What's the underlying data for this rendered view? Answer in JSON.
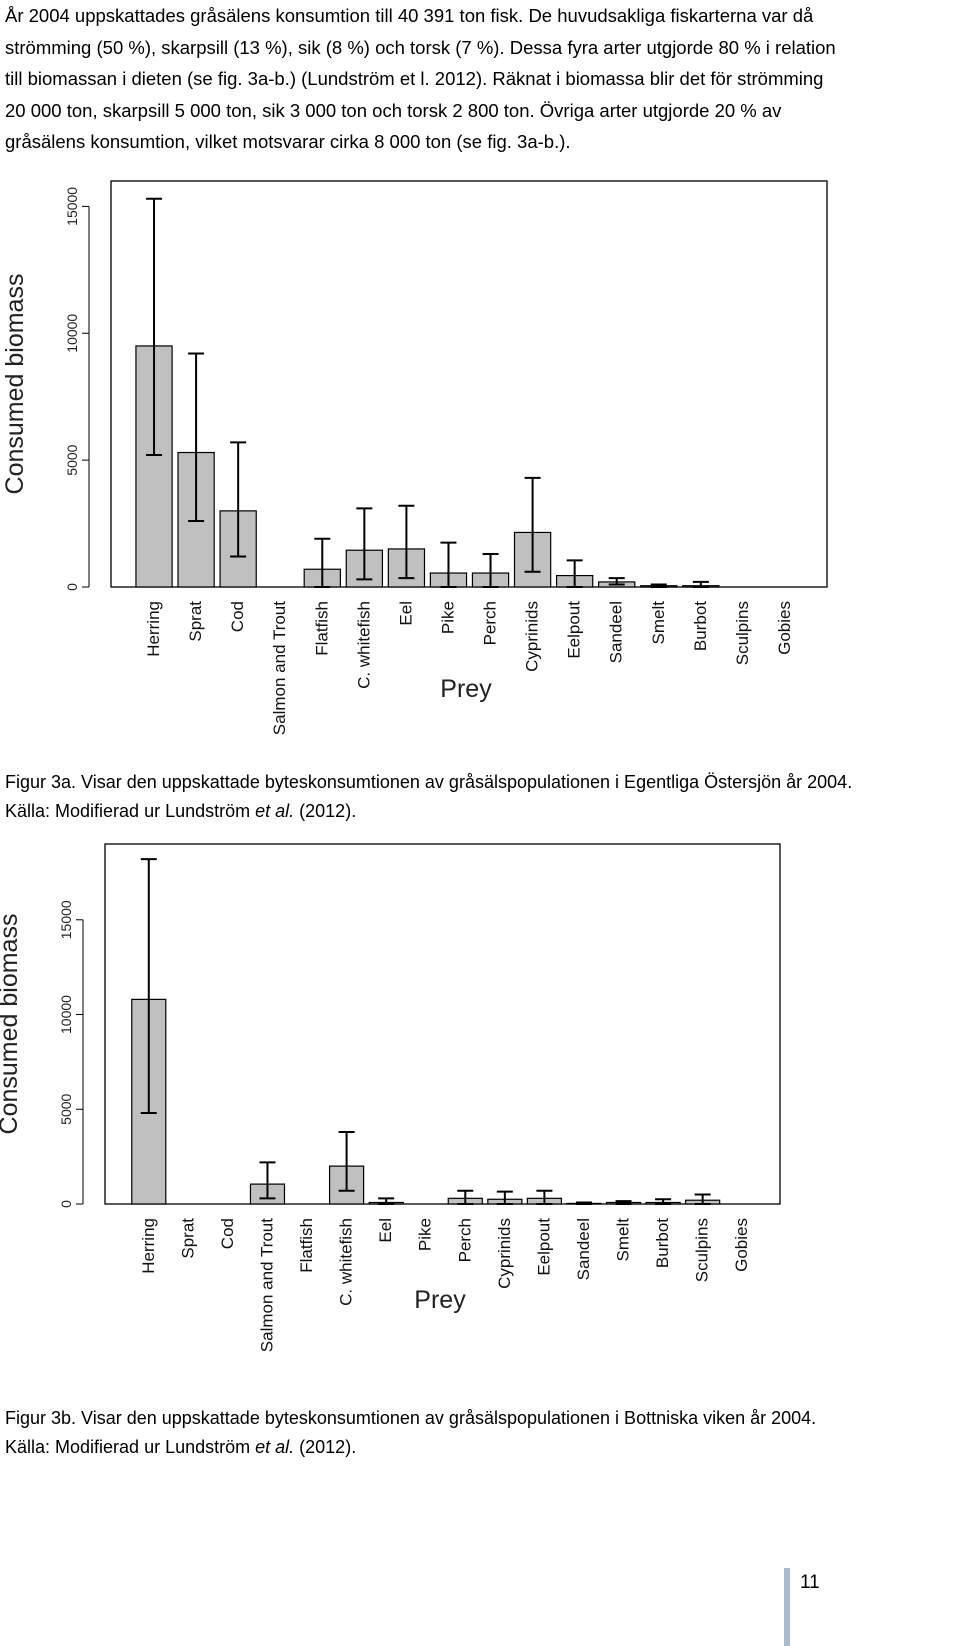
{
  "paragraph": {
    "lines": [
      "År 2004 uppskattades gråsälens konsumtion till 40 391 ton fisk. De huvudsakliga fiskarterna var då",
      "strömming (50 %), skarpsill (13 %), sik (8 %) och torsk (7 %). Dessa fyra arter utgjorde 80 % i relation",
      "till biomassan i dieten (se fig. 3a-b.) (Lundström et l. 2012). Räknat i biomassa blir det för strömming",
      "20 000 ton, skarpsill 5 000 ton, sik 3 000 ton och torsk 2 800 ton. Övriga arter utgjorde 20 % av",
      "gråsälens konsumtion, vilket motsvarar cirka 8 000 ton (se fig. 3a-b.)."
    ]
  },
  "figure_a": {
    "caption_line1": "Figur 3a. Visar den uppskattade byteskonsumtionen av gråsälspopulationen i Egentliga Östersjön år 2004.",
    "caption_line2_prefix": "Källa: Modifierad ur Lundström ",
    "caption_line2_italic": "et al.",
    "caption_line2_suffix": " (2012)."
  },
  "figure_b": {
    "caption_line1": "Figur 3b. Visar den uppskattade byteskonsumtionen av gråsälspopulationen i Bottniska viken år 2004.",
    "caption_line2_prefix": "Källa: Modifierad ur Lundström ",
    "caption_line2_italic": "et al.",
    "caption_line2_suffix": " (2012)."
  },
  "page_number": "11",
  "chart_data": [
    {
      "type": "bar",
      "xlabel": "Prey",
      "ylabel": "Consumed biomass",
      "ylim": [
        0,
        16000
      ],
      "yticks": [
        "0",
        "5000",
        "10000",
        "15000"
      ],
      "categories": [
        "Herring",
        "Sprat",
        "Cod",
        "Salmon and Trout",
        "Flatfish",
        "C. whitefish",
        "Eel",
        "Pike",
        "Perch",
        "Cyprinids",
        "Eelpout",
        "Sandeel",
        "Smelt",
        "Burbot",
        "Sculpins",
        "Gobies"
      ],
      "values": [
        9500,
        5300,
        3000,
        0,
        700,
        1450,
        1500,
        550,
        550,
        2150,
        450,
        200,
        50,
        50,
        0,
        0
      ],
      "error_low": [
        5200,
        2600,
        1200,
        0,
        0,
        300,
        350,
        0,
        0,
        600,
        0,
        100,
        0,
        0,
        0,
        0
      ],
      "error_high": [
        15300,
        9200,
        5700,
        0,
        1900,
        3100,
        3200,
        1750,
        1300,
        4300,
        1050,
        350,
        100,
        200,
        0,
        0
      ],
      "bar_color": "#c0c0c0",
      "grid": false
    },
    {
      "type": "bar",
      "xlabel": "Prey",
      "ylabel": "Consumed biomass",
      "ylim": [
        0,
        19000
      ],
      "yticks": [
        "0",
        "5000",
        "10000",
        "15000"
      ],
      "categories": [
        "Herring",
        "Sprat",
        "Cod",
        "Salmon and Trout",
        "Flatfish",
        "C. whitefish",
        "Eel",
        "Pike",
        "Perch",
        "Cyprinids",
        "Eelpout",
        "Sandeel",
        "Smelt",
        "Burbot",
        "Sculpins",
        "Gobies"
      ],
      "values": [
        10800,
        0,
        0,
        1050,
        0,
        2000,
        80,
        0,
        300,
        250,
        300,
        30,
        80,
        80,
        200,
        0
      ],
      "error_low": [
        4800,
        0,
        0,
        300,
        0,
        700,
        0,
        0,
        0,
        0,
        0,
        0,
        0,
        0,
        0,
        0
      ],
      "error_high": [
        18200,
        0,
        0,
        2200,
        0,
        3800,
        300,
        0,
        700,
        650,
        700,
        80,
        150,
        250,
        500,
        0
      ],
      "bar_color": "#c0c0c0",
      "grid": false
    }
  ]
}
